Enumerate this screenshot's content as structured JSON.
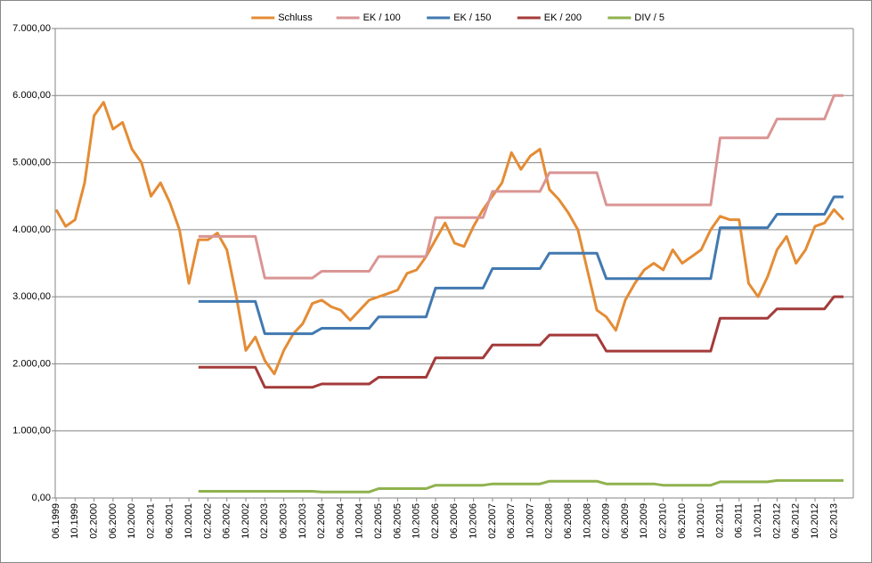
{
  "chart_data": {
    "type": "line",
    "categories": [
      "06.1999",
      null,
      "10.1999",
      null,
      "02.2000",
      null,
      "06.2000",
      null,
      "10.2000",
      null,
      "02.2001",
      null,
      "06.2001",
      null,
      "10.2001",
      null,
      "02.2002",
      null,
      "06.2002",
      null,
      "10.2002",
      null,
      "02.2003",
      null,
      "06.2003",
      null,
      "10.2003",
      null,
      "02.2004",
      null,
      "06.2004",
      null,
      "10.2004",
      null,
      "02.2005",
      null,
      "06.2005",
      null,
      "10.2005",
      null,
      "02.2006",
      null,
      "06.2006",
      null,
      "10.2006",
      null,
      "02.2007",
      null,
      "06.2007",
      null,
      "10.2007",
      null,
      "02.2008",
      null,
      "06.2008",
      null,
      "10.2008",
      null,
      "02.2009",
      null,
      "06.2009",
      null,
      "10.2009",
      null,
      "02.2010",
      null,
      "06.2010",
      null,
      "10.2010",
      null,
      "02.2011",
      null,
      "06.2011",
      null,
      "10.2011",
      null,
      "02.2012",
      null,
      "06.2012",
      null,
      "10.2012",
      null,
      "02.2013",
      null
    ],
    "series": [
      {
        "name": "Schluss",
        "color": "#e48c35",
        "values": [
          4300,
          4050,
          4150,
          4700,
          5700,
          5900,
          5500,
          5600,
          5200,
          5000,
          4500,
          4700,
          4400,
          4000,
          3200,
          3850,
          3850,
          3950,
          3700,
          3000,
          2200,
          2400,
          2050,
          1850,
          2200,
          2450,
          2600,
          2900,
          2950,
          2850,
          2800,
          2650,
          2800,
          2950,
          3000,
          3050,
          3100,
          3350,
          3400,
          3600,
          3850,
          4100,
          3800,
          3750,
          4050,
          4300,
          4500,
          4700,
          5150,
          4900,
          5100,
          5200,
          4600,
          4450,
          4250,
          4000,
          3400,
          2800,
          2700,
          2500,
          2950,
          3200,
          3400,
          3500,
          3400,
          3700,
          3500,
          3600,
          3700,
          4000,
          4200,
          4150,
          4150,
          3200,
          3000,
          3300,
          3700,
          3900,
          3500,
          3700,
          4050,
          4100,
          4300,
          4150
        ]
      },
      {
        "name": "EK / 100",
        "color": "#d99594",
        "values": [
          null,
          null,
          null,
          null,
          null,
          null,
          null,
          null,
          null,
          null,
          null,
          null,
          null,
          null,
          null,
          3900,
          3900,
          3900,
          3900,
          3900,
          3900,
          3900,
          3280,
          3280,
          3280,
          3280,
          3280,
          3280,
          3380,
          3380,
          3380,
          3380,
          3380,
          3380,
          3600,
          3600,
          3600,
          3600,
          3600,
          3600,
          4180,
          4180,
          4180,
          4180,
          4180,
          4180,
          4570,
          4570,
          4570,
          4570,
          4570,
          4570,
          4850,
          4850,
          4850,
          4850,
          4850,
          4850,
          4370,
          4370,
          4370,
          4370,
          4370,
          4370,
          4370,
          4370,
          4370,
          4370,
          4370,
          4370,
          5370,
          5370,
          5370,
          5370,
          5370,
          5370,
          5650,
          5650,
          5650,
          5650,
          5650,
          5650,
          6000,
          6000
        ]
      },
      {
        "name": "EK / 150",
        "color": "#4279b0",
        "values": [
          null,
          null,
          null,
          null,
          null,
          null,
          null,
          null,
          null,
          null,
          null,
          null,
          null,
          null,
          null,
          2930,
          2930,
          2930,
          2930,
          2930,
          2930,
          2930,
          2450,
          2450,
          2450,
          2450,
          2450,
          2450,
          2530,
          2530,
          2530,
          2530,
          2530,
          2530,
          2700,
          2700,
          2700,
          2700,
          2700,
          2700,
          3130,
          3130,
          3130,
          3130,
          3130,
          3130,
          3420,
          3420,
          3420,
          3420,
          3420,
          3420,
          3650,
          3650,
          3650,
          3650,
          3650,
          3650,
          3270,
          3270,
          3270,
          3270,
          3270,
          3270,
          3270,
          3270,
          3270,
          3270,
          3270,
          3270,
          4030,
          4030,
          4030,
          4030,
          4030,
          4030,
          4230,
          4230,
          4230,
          4230,
          4230,
          4230,
          4490,
          4490
        ]
      },
      {
        "name": "EK / 200",
        "color": "#a33b3a",
        "values": [
          null,
          null,
          null,
          null,
          null,
          null,
          null,
          null,
          null,
          null,
          null,
          null,
          null,
          null,
          null,
          1950,
          1950,
          1950,
          1950,
          1950,
          1950,
          1950,
          1650,
          1650,
          1650,
          1650,
          1650,
          1650,
          1700,
          1700,
          1700,
          1700,
          1700,
          1700,
          1800,
          1800,
          1800,
          1800,
          1800,
          1800,
          2090,
          2090,
          2090,
          2090,
          2090,
          2090,
          2280,
          2280,
          2280,
          2280,
          2280,
          2280,
          2430,
          2430,
          2430,
          2430,
          2430,
          2430,
          2190,
          2190,
          2190,
          2190,
          2190,
          2190,
          2190,
          2190,
          2190,
          2190,
          2190,
          2190,
          2680,
          2680,
          2680,
          2680,
          2680,
          2680,
          2820,
          2820,
          2820,
          2820,
          2820,
          2820,
          3000,
          3000
        ]
      },
      {
        "name": "DIV / 5",
        "color": "#8fb24e",
        "values": [
          null,
          null,
          null,
          null,
          null,
          null,
          null,
          null,
          null,
          null,
          null,
          null,
          null,
          null,
          null,
          100,
          100,
          100,
          100,
          100,
          100,
          100,
          100,
          100,
          100,
          100,
          100,
          100,
          90,
          90,
          90,
          90,
          90,
          90,
          140,
          140,
          140,
          140,
          140,
          140,
          190,
          190,
          190,
          190,
          190,
          190,
          210,
          210,
          210,
          210,
          210,
          210,
          250,
          250,
          250,
          250,
          250,
          250,
          210,
          210,
          210,
          210,
          210,
          210,
          190,
          190,
          190,
          190,
          190,
          190,
          240,
          240,
          240,
          240,
          240,
          240,
          260,
          260,
          260,
          260,
          260,
          260,
          260,
          260
        ]
      }
    ],
    "ylim": [
      0,
      7000
    ],
    "yticks": [
      {
        "value": 0,
        "label": "0,00"
      },
      {
        "value": 1000,
        "label": "1.000,00"
      },
      {
        "value": 2000,
        "label": "2.000,00"
      },
      {
        "value": 3000,
        "label": "3.000,00"
      },
      {
        "value": 4000,
        "label": "4.000,00"
      },
      {
        "value": 5000,
        "label": "5.000,00"
      },
      {
        "value": 6000,
        "label": "6.000,00"
      },
      {
        "value": 7000,
        "label": "7.000,00"
      }
    ],
    "grid": true,
    "legend": "top"
  }
}
